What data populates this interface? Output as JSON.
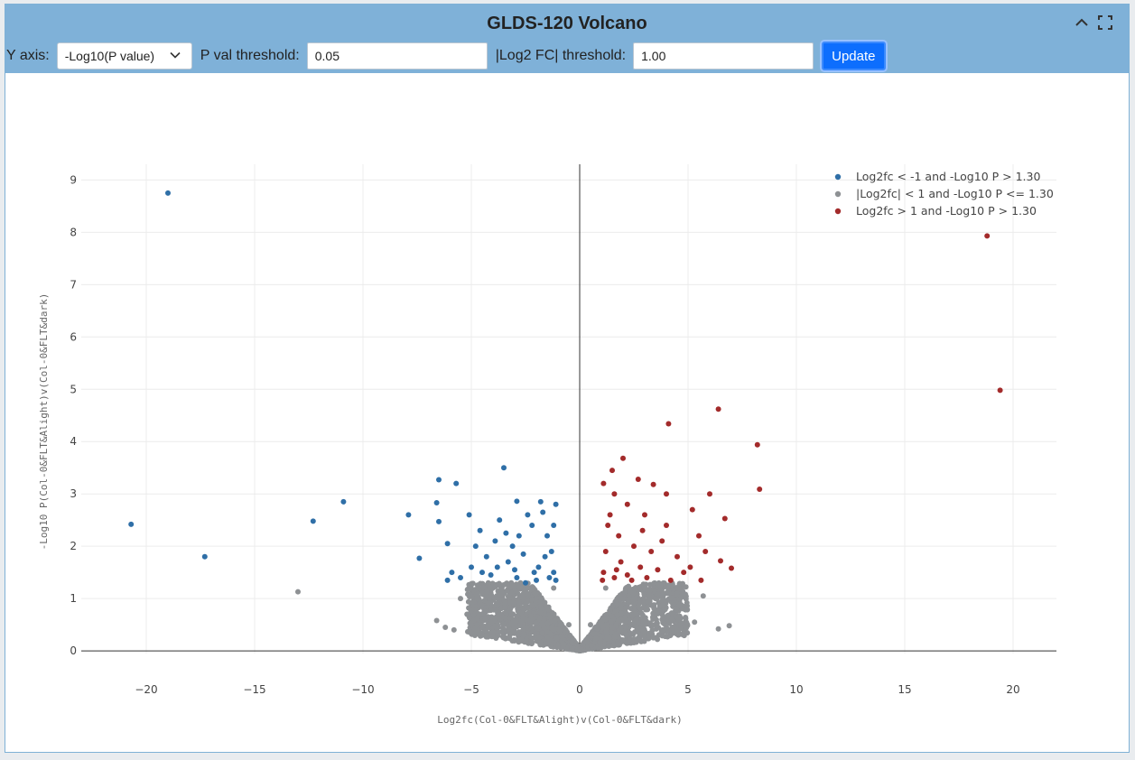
{
  "panel": {
    "title": "GLDS-120 Volcano"
  },
  "controls": {
    "y_axis_label": "Y axis:",
    "y_axis_value": "-Log10(P value)",
    "pval_label": "P val threshold:",
    "pval_value": "0.05",
    "fc_label": "|Log2 FC| threshold:",
    "fc_value": "1.00",
    "update_label": "Update"
  },
  "icons": {
    "collapse": "chevron-up-icon",
    "fullscreen": "fullscreen-icon"
  },
  "chart_data": {
    "type": "scatter",
    "xlabel": "Log2fc(Col-0&FLT&Alight)v(Col-0&FLT&dark)",
    "ylabel": "-Log10 P(Col-0&FLT&Alight)v(Col-0&FLT&dark)",
    "xlim": [
      -23,
      22
    ],
    "ylim": [
      -0.05,
      9.3
    ],
    "xticks": [
      -20,
      -15,
      -10,
      -5,
      0,
      5,
      10,
      15,
      20
    ],
    "yticks": [
      0,
      1,
      2,
      3,
      4,
      5,
      6,
      7,
      8,
      9
    ],
    "xtick_labels": [
      "−20",
      "−15",
      "−10",
      "−5",
      "0",
      "5",
      "10",
      "15",
      "20"
    ],
    "ytick_labels": [
      "0",
      "1",
      "2",
      "3",
      "4",
      "5",
      "6",
      "7",
      "8",
      "9"
    ],
    "grid": true,
    "legend_position": "top-right",
    "series": [
      {
        "name": "Log2fc < -1 and -Log10 P > 1.30",
        "color": "#2f6fa7",
        "points": [
          [
            -19,
            8.75
          ],
          [
            -20.7,
            2.42
          ],
          [
            -17.3,
            1.8
          ],
          [
            -12.3,
            2.48
          ],
          [
            -10.9,
            2.85
          ],
          [
            -7.9,
            2.6
          ],
          [
            -7.4,
            1.77
          ],
          [
            -6.5,
            3.27
          ],
          [
            -6.6,
            2.83
          ],
          [
            -6.5,
            2.47
          ],
          [
            -6.1,
            2.05
          ],
          [
            -5.7,
            3.2
          ],
          [
            -5.1,
            2.6
          ],
          [
            -3.5,
            3.5
          ],
          [
            -2.9,
            2.86
          ],
          [
            -1.8,
            2.85
          ],
          [
            -1.1,
            2.8
          ],
          [
            -4.6,
            2.3
          ],
          [
            -3.9,
            2.1
          ],
          [
            -3.1,
            2.0
          ],
          [
            -2.2,
            2.4
          ],
          [
            -1.5,
            2.2
          ],
          [
            -4.3,
            1.8
          ],
          [
            -3.3,
            1.7
          ],
          [
            -2.6,
            1.85
          ],
          [
            -1.9,
            1.6
          ],
          [
            -1.2,
            1.5
          ],
          [
            -5.0,
            1.6
          ],
          [
            -4.1,
            1.45
          ],
          [
            -2.9,
            1.4
          ],
          [
            -2.0,
            1.35
          ],
          [
            -1.4,
            1.4
          ],
          [
            -5.5,
            1.4
          ],
          [
            -3.7,
            2.5
          ],
          [
            -2.4,
            2.6
          ],
          [
            -1.7,
            2.65
          ],
          [
            -4.8,
            2.0
          ],
          [
            -3.4,
            2.25
          ],
          [
            -1.3,
            1.9
          ],
          [
            -2.1,
            1.5
          ],
          [
            -3.0,
            1.55
          ],
          [
            -4.5,
            1.5
          ],
          [
            -1.6,
            1.8
          ],
          [
            -2.8,
            2.2
          ],
          [
            -3.8,
            1.6
          ],
          [
            -5.9,
            1.5
          ],
          [
            -6.1,
            1.35
          ],
          [
            -1.1,
            1.35
          ],
          [
            -1.2,
            2.4
          ],
          [
            -2.5,
            1.3
          ]
        ]
      },
      {
        "name": "|Log2fc| < 1 and -Log10 P <= 1.30",
        "color": "#8e9194",
        "points": [
          [
            -13,
            1.13
          ],
          [
            -6.6,
            0.58
          ],
          [
            -6.2,
            0.45
          ],
          [
            -5.8,
            0.4
          ],
          [
            -5.5,
            1.0
          ],
          [
            -5.2,
            0.7
          ],
          [
            6.4,
            0.42
          ],
          [
            6.9,
            0.48
          ],
          [
            5.7,
            1.05
          ],
          [
            5.3,
            0.55
          ],
          [
            -4.5,
            1.1
          ],
          [
            4.5,
            1.1
          ],
          [
            -3.8,
            0.5
          ],
          [
            3.8,
            0.6
          ],
          [
            -2.5,
            0.9
          ],
          [
            2.5,
            0.9
          ],
          [
            -1.2,
            1.2
          ],
          [
            1.2,
            1.2
          ],
          [
            -0.5,
            0.5
          ],
          [
            0.5,
            0.5
          ],
          [
            -3.0,
            1.2
          ],
          [
            3.0,
            1.2
          ],
          [
            -4.8,
            0.35
          ],
          [
            4.8,
            0.35
          ]
        ]
      },
      {
        "name": "Log2fc > 1 and -Log10 P > 1.30",
        "color": "#a32b2b",
        "points": [
          [
            18.8,
            7.93
          ],
          [
            19.4,
            4.98
          ],
          [
            6.4,
            4.62
          ],
          [
            4.1,
            4.34
          ],
          [
            8.2,
            3.94
          ],
          [
            8.3,
            3.09
          ],
          [
            2.0,
            3.68
          ],
          [
            1.5,
            3.45
          ],
          [
            2.7,
            3.28
          ],
          [
            3.4,
            3.18
          ],
          [
            4.0,
            3.0
          ],
          [
            6.0,
            3.0
          ],
          [
            6.7,
            2.53
          ],
          [
            5.2,
            2.7
          ],
          [
            7.0,
            1.58
          ],
          [
            6.5,
            1.72
          ],
          [
            1.1,
            3.2
          ],
          [
            1.6,
            3.0
          ],
          [
            2.2,
            2.8
          ],
          [
            3.0,
            2.6
          ],
          [
            4.0,
            2.4
          ],
          [
            5.5,
            2.2
          ],
          [
            1.3,
            2.4
          ],
          [
            1.8,
            2.2
          ],
          [
            2.5,
            2.0
          ],
          [
            3.3,
            1.9
          ],
          [
            4.5,
            1.8
          ],
          [
            5.8,
            1.9
          ],
          [
            1.2,
            1.9
          ],
          [
            1.9,
            1.7
          ],
          [
            2.8,
            1.6
          ],
          [
            3.6,
            1.55
          ],
          [
            4.8,
            1.5
          ],
          [
            1.1,
            1.5
          ],
          [
            1.6,
            1.4
          ],
          [
            2.4,
            1.35
          ],
          [
            3.1,
            1.4
          ],
          [
            4.2,
            1.35
          ],
          [
            1.4,
            2.6
          ],
          [
            2.9,
            2.3
          ],
          [
            3.8,
            2.1
          ],
          [
            5.1,
            1.6
          ],
          [
            1.7,
            1.55
          ],
          [
            2.2,
            1.45
          ],
          [
            1.05,
            1.35
          ],
          [
            5.6,
            1.35
          ]
        ]
      }
    ]
  }
}
